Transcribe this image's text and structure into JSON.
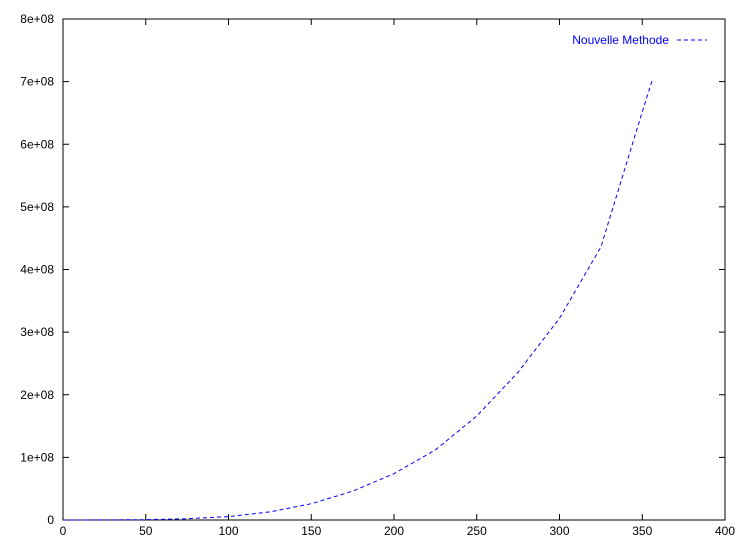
{
  "chart_data": {
    "type": "line",
    "title": "",
    "xlabel": "",
    "ylabel": "",
    "xlim": [
      0,
      400
    ],
    "ylim": [
      0,
      800000000
    ],
    "x_ticks": [
      0,
      50,
      100,
      150,
      200,
      250,
      300,
      350,
      400
    ],
    "x_tick_labels": [
      "0",
      "50",
      "100",
      "150",
      "200",
      "250",
      "300",
      "350",
      "400"
    ],
    "y_ticks": [
      0,
      100000000,
      200000000,
      300000000,
      400000000,
      500000000,
      600000000,
      700000000,
      800000000
    ],
    "y_tick_labels": [
      "0",
      "1e+08",
      "2e+08",
      "3e+08",
      "4e+08",
      "5e+08",
      "6e+08",
      "7e+08",
      "8e+08"
    ],
    "grid": false,
    "legend_position": "top-right",
    "series": [
      {
        "name": "Nouvelle Methode",
        "color": "#0000ff",
        "line_style": "dashed",
        "x": [
          0,
          25,
          50,
          75,
          100,
          125,
          150,
          175,
          200,
          225,
          250,
          275,
          300,
          325,
          350,
          356
        ],
        "y": [
          0,
          100000,
          500000,
          2000000,
          5500000,
          13000000,
          26000000,
          46000000,
          74000000,
          112000000,
          166000000,
          236000000,
          322000000,
          436000000,
          652000000,
          702000000
        ]
      }
    ]
  }
}
